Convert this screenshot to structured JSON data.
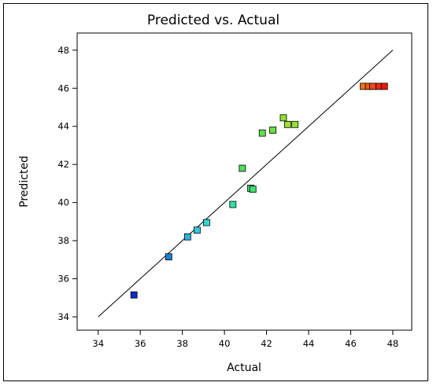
{
  "chart_data": {
    "type": "scatter",
    "title": "Predicted vs. Actual",
    "xlabel": "Actual",
    "ylabel": "Predicted",
    "xlim": [
      33,
      48.9
    ],
    "ylim": [
      33.3,
      48.9
    ],
    "xticks": [
      34,
      36,
      38,
      40,
      42,
      44,
      46,
      48
    ],
    "yticks": [
      34,
      36,
      38,
      40,
      42,
      44,
      46,
      48
    ],
    "grid": false,
    "reference_line": {
      "x": [
        34,
        48
      ],
      "y": [
        34,
        48
      ]
    },
    "points": [
      {
        "x": 35.7,
        "y": 35.15,
        "color": "#0b2bc4"
      },
      {
        "x": 37.35,
        "y": 37.15,
        "color": "#1a7fd6"
      },
      {
        "x": 38.25,
        "y": 38.2,
        "color": "#2fb0e0"
      },
      {
        "x": 38.7,
        "y": 38.55,
        "color": "#33c8e0"
      },
      {
        "x": 39.15,
        "y": 38.95,
        "color": "#35d8d0"
      },
      {
        "x": 40.4,
        "y": 39.9,
        "color": "#2fe0a0"
      },
      {
        "x": 41.25,
        "y": 40.75,
        "color": "#3ee07a"
      },
      {
        "x": 41.35,
        "y": 40.7,
        "color": "#44e070"
      },
      {
        "x": 40.85,
        "y": 41.8,
        "color": "#4ee05a"
      },
      {
        "x": 41.8,
        "y": 43.65,
        "color": "#5de04a"
      },
      {
        "x": 42.3,
        "y": 43.8,
        "color": "#6ae040"
      },
      {
        "x": 42.8,
        "y": 44.45,
        "color": "#8ee030"
      },
      {
        "x": 43.0,
        "y": 44.1,
        "color": "#a0e030"
      },
      {
        "x": 43.35,
        "y": 44.1,
        "color": "#96e030"
      },
      {
        "x": 46.6,
        "y": 46.1,
        "color": "#f07010"
      },
      {
        "x": 46.85,
        "y": 46.1,
        "color": "#f05a10"
      },
      {
        "x": 47.05,
        "y": 46.1,
        "color": "#f04a10"
      },
      {
        "x": 47.35,
        "y": 46.1,
        "color": "#ee2a10"
      },
      {
        "x": 47.6,
        "y": 46.1,
        "color": "#ee1a10"
      }
    ]
  }
}
